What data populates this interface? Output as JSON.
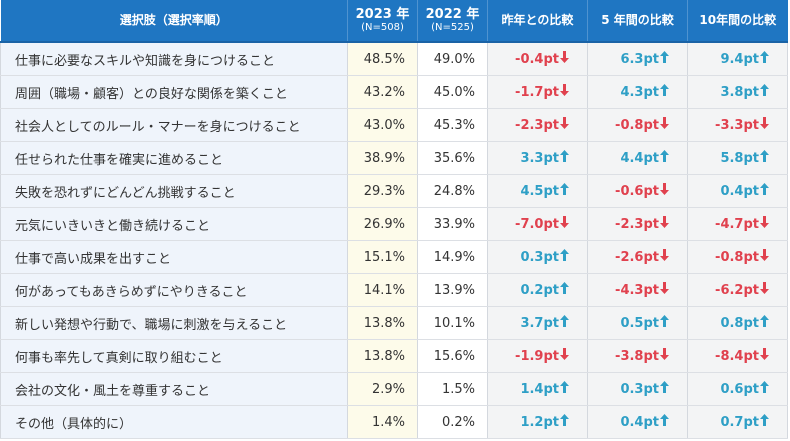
{
  "header": {
    "label": "選択肢（選択率順）",
    "y2023": {
      "year": "2023 年",
      "n": "(N=508)"
    },
    "y2022": {
      "year": "2022 年",
      "n": "(N=525)"
    },
    "cmp_last_year": "昨年との比較",
    "cmp_5y": "5 年間の比較",
    "cmp_10y": "10年間の比較"
  },
  "colors": {
    "header_bg": "#1f76c2",
    "up": "#2e9fc6",
    "down": "#e0414e",
    "y2023_bg": "#fdfbea",
    "label_bg": "#eff4fb"
  },
  "icons": {
    "up": "arrow-up-icon",
    "down": "arrow-down-icon"
  },
  "rows": [
    {
      "label": "仕事に必要なスキルや知識を身につけること",
      "y2023": "48.5%",
      "y2022": "49.0%",
      "cmp1": "-0.4pt",
      "d1": "down",
      "cmp5": "6.3pt",
      "d5": "up",
      "cmp10": "9.4pt",
      "d10": "up"
    },
    {
      "label": "周囲（職場・顧客）との良好な関係を築くこと",
      "y2023": "43.2%",
      "y2022": "45.0%",
      "cmp1": "-1.7pt",
      "d1": "down",
      "cmp5": "4.3pt",
      "d5": "up",
      "cmp10": "3.8pt",
      "d10": "up"
    },
    {
      "label": "社会人としてのルール・マナーを身につけること",
      "y2023": "43.0%",
      "y2022": "45.3%",
      "cmp1": "-2.3pt",
      "d1": "down",
      "cmp5": "-0.8pt",
      "d5": "down",
      "cmp10": "-3.3pt",
      "d10": "down"
    },
    {
      "label": "任せられた仕事を確実に進めること",
      "y2023": "38.9%",
      "y2022": "35.6%",
      "cmp1": "3.3pt",
      "d1": "up",
      "cmp5": "4.4pt",
      "d5": "up",
      "cmp10": "5.8pt",
      "d10": "up"
    },
    {
      "label": "失敗を恐れずにどんどん挑戦すること",
      "y2023": "29.3%",
      "y2022": "24.8%",
      "cmp1": "4.5pt",
      "d1": "up",
      "cmp5": "-0.6pt",
      "d5": "down",
      "cmp10": "0.4pt",
      "d10": "up"
    },
    {
      "label": "元気にいきいきと働き続けること",
      "y2023": "26.9%",
      "y2022": "33.9%",
      "cmp1": "-7.0pt",
      "d1": "down",
      "cmp5": "-2.3pt",
      "d5": "down",
      "cmp10": "-4.7pt",
      "d10": "down"
    },
    {
      "label": "仕事で高い成果を出すこと",
      "y2023": "15.1%",
      "y2022": "14.9%",
      "cmp1": "0.3pt",
      "d1": "up",
      "cmp5": "-2.6pt",
      "d5": "down",
      "cmp10": "-0.8pt",
      "d10": "down"
    },
    {
      "label": "何があってもあきらめずにやりきること",
      "y2023": "14.1%",
      "y2022": "13.9%",
      "cmp1": "0.2pt",
      "d1": "up",
      "cmp5": "-4.3pt",
      "d5": "down",
      "cmp10": "-6.2pt",
      "d10": "down"
    },
    {
      "label": "新しい発想や行動で、職場に刺激を与えること",
      "y2023": "13.8%",
      "y2022": "10.1%",
      "cmp1": "3.7pt",
      "d1": "up",
      "cmp5": "0.5pt",
      "d5": "up",
      "cmp10": "0.8pt",
      "d10": "up"
    },
    {
      "label": "何事も率先して真剣に取り組むこと",
      "y2023": "13.8%",
      "y2022": "15.6%",
      "cmp1": "-1.9pt",
      "d1": "down",
      "cmp5": "-3.8pt",
      "d5": "down",
      "cmp10": "-8.4pt",
      "d10": "down"
    },
    {
      "label": "会社の文化・風土を尊重すること",
      "y2023": "2.9%",
      "y2022": "1.5%",
      "cmp1": "1.4pt",
      "d1": "up",
      "cmp5": "0.3pt",
      "d5": "up",
      "cmp10": "0.6pt",
      "d10": "up"
    },
    {
      "label": "その他（具体的に）",
      "y2023": "1.4%",
      "y2022": "0.2%",
      "cmp1": "1.2pt",
      "d1": "up",
      "cmp5": "0.4pt",
      "d5": "up",
      "cmp10": "0.7pt",
      "d10": "up"
    }
  ]
}
